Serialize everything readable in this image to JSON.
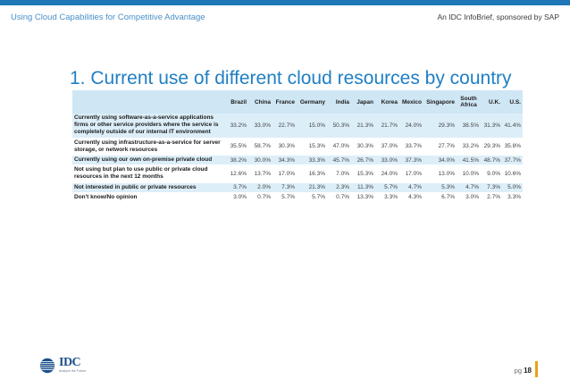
{
  "header": {
    "left": "Using Cloud Capabilities for Competitive Advantage",
    "right": "An IDC InfoBrief, sponsored by SAP"
  },
  "title": "1. Current use of different cloud resources by country",
  "table": {
    "columns": [
      "Brazil",
      "China",
      "France",
      "Germany",
      "India",
      "Japan",
      "Korea",
      "Mexico",
      "Singapore",
      "South Africa",
      "U.K.",
      "U.S."
    ],
    "rows": [
      {
        "label": "Currently using software-as-a-service applications firms or other service providers where the service is completely outside of our internal IT environment",
        "values": [
          "33.2%",
          "33.0%",
          "22.7%",
          "15.0%",
          "50.3%",
          "21.3%",
          "21.7%",
          "24.0%",
          "29.3%",
          "38.5%",
          "31.3%",
          "41.4%"
        ]
      },
      {
        "label": "Currently using infrastructure-as-a-service for server storage, or network resources",
        "values": [
          "35.5%",
          "58.7%",
          "30.3%",
          "15.3%",
          "47.0%",
          "30.3%",
          "37.0%",
          "33.7%",
          "27.7%",
          "33.2%",
          "29.3%",
          "35.8%"
        ]
      },
      {
        "label": "Currently using our own on-premise private cloud",
        "values": [
          "38.2%",
          "30.0%",
          "34.3%",
          "33.3%",
          "45.7%",
          "26.7%",
          "33.0%",
          "37.3%",
          "34.0%",
          "41.5%",
          "48.7%",
          "37.7%"
        ]
      },
      {
        "label": "Not using but plan to use public or private cloud resources in the next 12 months",
        "values": [
          "12.6%",
          "13.7%",
          "17.0%",
          "16.3%",
          "7.0%",
          "15.3%",
          "24.0%",
          "17.0%",
          "13.0%",
          "10.0%",
          "9.0%",
          "10.6%"
        ]
      },
      {
        "label": "Not interested in public or private resources",
        "values": [
          "3.7%",
          "2.0%",
          "7.3%",
          "21.3%",
          "2.3%",
          "11.3%",
          "5.7%",
          "4.7%",
          "5.3%",
          "4.7%",
          "7.3%",
          "5.0%"
        ]
      },
      {
        "label": "Don't know/No opinion",
        "values": [
          "3.0%",
          "0.7%",
          "5.7%",
          "5.7%",
          "0.7%",
          "13.3%",
          "3.3%",
          "4.3%",
          "6.7%",
          "3.0%",
          "2.7%",
          "3.3%"
        ]
      }
    ]
  },
  "footer": {
    "logo_text": "IDC",
    "logo_tagline": "Analyze the Future",
    "page_prefix": "pg",
    "page_number": "18"
  },
  "colors": {
    "accent": "#1f7fc4",
    "header_row": "#cfe6f4",
    "alt_row": "#dceef8",
    "page_bar": "#e8a317"
  }
}
